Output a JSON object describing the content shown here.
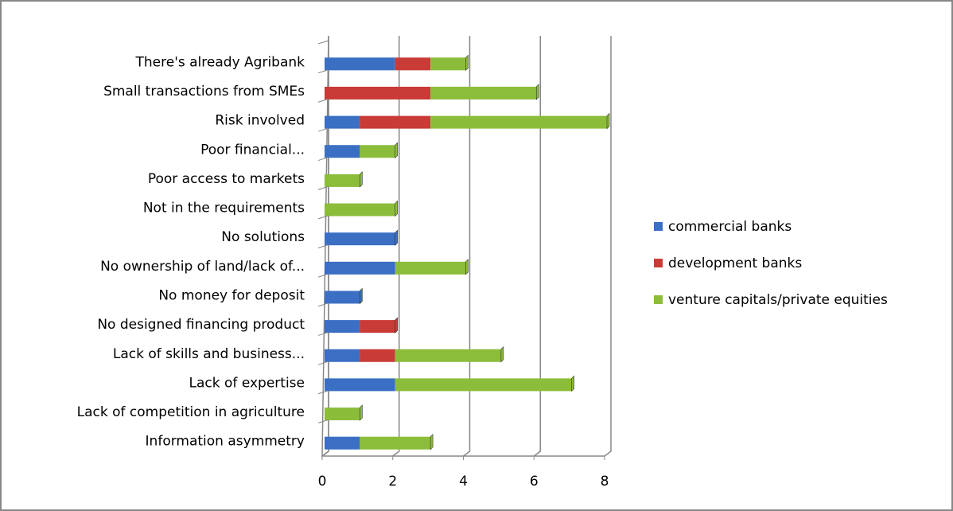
{
  "chart_data": {
    "type": "bar",
    "orientation": "horizontal",
    "stacked": true,
    "categories": [
      "There's already Agribank",
      "Small transactions from SMEs",
      "Risk involved",
      "Poor financial...",
      "Poor access to markets",
      "Not in the requirements",
      "No solutions",
      "No ownership of land/lack of...",
      "No money for deposit",
      "No designed financing product",
      "Lack of skills and business...",
      "Lack of expertise",
      "Lack of competition in agriculture",
      "Information asymmetry"
    ],
    "series": [
      {
        "name": "commercial banks",
        "color": "#3a6fc4",
        "values": [
          2,
          0,
          1,
          1,
          0,
          0,
          2,
          2,
          1,
          1,
          1,
          2,
          0,
          1
        ]
      },
      {
        "name": "development banks",
        "color": "#c93b36",
        "values": [
          1,
          3,
          2,
          0,
          0,
          0,
          0,
          0,
          0,
          1,
          1,
          0,
          0,
          0
        ]
      },
      {
        "name": "venture capitals/private equities",
        "color": "#8cbd3a",
        "values": [
          1,
          3,
          5,
          1,
          1,
          2,
          0,
          2,
          0,
          0,
          3,
          5,
          1,
          2
        ]
      }
    ],
    "xlim": [
      0,
      8
    ],
    "xticks": [
      0,
      2,
      4,
      6,
      8
    ],
    "grid": true,
    "legend": "right"
  }
}
